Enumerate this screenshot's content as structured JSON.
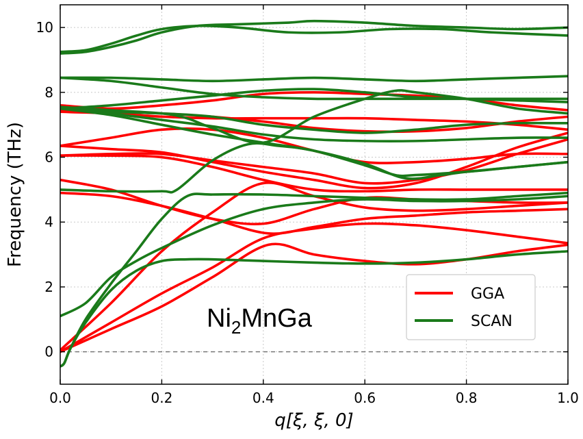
{
  "chart_data": {
    "type": "line",
    "title": "",
    "xlabel": "q[ξ, ξ, 0]",
    "ylabel": "Frequency (THz)",
    "xlim": [
      0.0,
      1.0
    ],
    "ylim": [
      -1.0,
      10.7
    ],
    "xticks": [
      0.0,
      0.2,
      0.4,
      0.6,
      0.8,
      1.0
    ],
    "xtick_labels": [
      "0.0",
      "0.2",
      "0.4",
      "0.6",
      "0.8",
      "1.0"
    ],
    "yticks": [
      0,
      2,
      4,
      6,
      8,
      10
    ],
    "ytick_labels": [
      "0",
      "2",
      "4",
      "6",
      "8",
      "10"
    ],
    "grid": true,
    "zero_line": 0,
    "annotation": {
      "base": "Ni",
      "sub": "2",
      "rest": "MnGa"
    },
    "legend": {
      "placement": "lower-right",
      "entries": [
        {
          "label": "GGA",
          "color": "#ff0000"
        },
        {
          "label": "SCAN",
          "color": "#1a7a1a"
        }
      ]
    },
    "series": [
      {
        "name": "GGA",
        "color": "#ff0000",
        "branches": [
          {
            "x": [
              0.0,
              0.1,
              0.2,
              0.3,
              0.41,
              0.5,
              0.6,
              0.7,
              0.8,
              0.9,
              1.0
            ],
            "y": [
              0.0,
              0.7,
              1.4,
              2.3,
              3.3,
              3.0,
              2.8,
              2.7,
              2.85,
              3.1,
              3.3
            ]
          },
          {
            "x": [
              0.0,
              0.1,
              0.2,
              0.3,
              0.4,
              0.5,
              0.6,
              0.7,
              0.8,
              0.9,
              1.0
            ],
            "y": [
              0.0,
              0.9,
              1.8,
              2.6,
              3.5,
              3.8,
              3.95,
              3.9,
              3.75,
              3.55,
              3.35
            ]
          },
          {
            "x": [
              0.0,
              0.1,
              0.2,
              0.3,
              0.4,
              0.5,
              0.6,
              0.7,
              0.8,
              0.9,
              1.0
            ],
            "y": [
              0.05,
              1.5,
              3.1,
              4.3,
              5.2,
              4.8,
              4.45,
              4.35,
              4.4,
              4.5,
              4.6
            ]
          },
          {
            "x": [
              0.0,
              0.1,
              0.2,
              0.3,
              0.41,
              0.5,
              0.6,
              0.7,
              0.8,
              0.9,
              1.0
            ],
            "y": [
              4.9,
              4.8,
              4.5,
              4.1,
              3.65,
              3.85,
              4.1,
              4.2,
              4.3,
              4.35,
              4.4
            ]
          },
          {
            "x": [
              0.0,
              0.1,
              0.2,
              0.3,
              0.4,
              0.5,
              0.6,
              0.7,
              0.8,
              0.9,
              1.0
            ],
            "y": [
              5.3,
              5.0,
              4.5,
              4.1,
              3.95,
              4.4,
              4.75,
              4.7,
              4.65,
              4.6,
              4.6
            ]
          },
          {
            "x": [
              0.0,
              0.1,
              0.2,
              0.3,
              0.4,
              0.5,
              0.6,
              0.7,
              0.8,
              0.9,
              1.0
            ],
            "y": [
              6.05,
              6.05,
              6.0,
              5.7,
              5.3,
              5.0,
              4.95,
              5.0,
              5.0,
              5.0,
              5.0
            ]
          },
          {
            "x": [
              0.0,
              0.1,
              0.2,
              0.3,
              0.4,
              0.5,
              0.6,
              0.7,
              0.8,
              0.9,
              1.0
            ],
            "y": [
              6.05,
              6.1,
              6.1,
              5.9,
              5.7,
              5.5,
              5.2,
              5.3,
              5.6,
              6.1,
              6.55
            ]
          },
          {
            "x": [
              0.0,
              0.1,
              0.2,
              0.3,
              0.4,
              0.5,
              0.6,
              0.7,
              0.8,
              0.9,
              1.0
            ],
            "y": [
              6.35,
              6.25,
              6.15,
              5.85,
              5.55,
              5.3,
              5.05,
              5.2,
              5.7,
              6.3,
              6.75
            ]
          },
          {
            "x": [
              0.0,
              0.1,
              0.2,
              0.3,
              0.4,
              0.5,
              0.6,
              0.7,
              0.8,
              0.9,
              1.0
            ],
            "y": [
              6.35,
              6.6,
              6.85,
              6.85,
              6.6,
              6.2,
              5.85,
              5.85,
              5.95,
              6.1,
              6.1
            ]
          },
          {
            "x": [
              0.0,
              0.1,
              0.2,
              0.3,
              0.4,
              0.5,
              0.6,
              0.7,
              0.8,
              0.9,
              1.0
            ],
            "y": [
              7.4,
              7.35,
              7.25,
              7.2,
              7.2,
              7.2,
              7.2,
              7.15,
              7.1,
              7.0,
              6.85
            ]
          },
          {
            "x": [
              0.0,
              0.1,
              0.2,
              0.3,
              0.4,
              0.5,
              0.6,
              0.7,
              0.8,
              0.9,
              1.0
            ],
            "y": [
              7.45,
              7.4,
              7.35,
              7.25,
              7.1,
              6.9,
              6.8,
              6.8,
              6.9,
              7.1,
              7.25
            ]
          },
          {
            "x": [
              0.0,
              0.1,
              0.2,
              0.3,
              0.4,
              0.5,
              0.6,
              0.7,
              0.8,
              0.9,
              1.0
            ],
            "y": [
              7.6,
              7.5,
              7.6,
              7.75,
              7.95,
              8.0,
              7.95,
              7.9,
              7.8,
              7.6,
              7.45
            ]
          }
        ]
      },
      {
        "name": "SCAN",
        "color": "#1a7a1a",
        "branches": [
          {
            "x": [
              0.0,
              0.008,
              0.02,
              0.05,
              0.1,
              0.15,
              0.2,
              0.25,
              0.3,
              0.4,
              0.5,
              0.6,
              0.7,
              0.8,
              0.9,
              1.0
            ],
            "y": [
              -0.45,
              -0.35,
              0.1,
              0.9,
              1.9,
              2.5,
              2.8,
              2.85,
              2.85,
              2.8,
              2.75,
              2.72,
              2.75,
              2.85,
              3.0,
              3.1
            ]
          },
          {
            "x": [
              0.0,
              0.008,
              0.02,
              0.05,
              0.1,
              0.15,
              0.2,
              0.25,
              0.3,
              0.4,
              0.5,
              0.6,
              0.7,
              0.8,
              0.9,
              1.0
            ],
            "y": [
              -0.45,
              -0.35,
              0.1,
              1.0,
              2.1,
              3.1,
              4.1,
              4.8,
              4.85,
              4.85,
              4.8,
              4.75,
              4.7,
              4.7,
              4.8,
              4.9
            ]
          },
          {
            "x": [
              0.0,
              0.05,
              0.1,
              0.15,
              0.2,
              0.3,
              0.4,
              0.5,
              0.6,
              0.7,
              0.8,
              0.9,
              1.0
            ],
            "y": [
              1.1,
              1.5,
              2.3,
              2.8,
              3.2,
              3.9,
              4.4,
              4.6,
              4.7,
              4.65,
              4.65,
              4.7,
              4.8
            ]
          },
          {
            "x": [
              0.0,
              0.1,
              0.2,
              0.23,
              0.3,
              0.37,
              0.43,
              0.5,
              0.6,
              0.66,
              0.7,
              0.8,
              0.9,
              1.0
            ],
            "y": [
              5.0,
              4.95,
              4.95,
              5.0,
              5.9,
              6.4,
              6.35,
              6.2,
              5.75,
              5.45,
              5.45,
              5.55,
              5.7,
              5.85
            ]
          },
          {
            "x": [
              0.0,
              0.1,
              0.2,
              0.3,
              0.4,
              0.5,
              0.6,
              0.68,
              0.75,
              0.8,
              0.9,
              1.0
            ],
            "y": [
              7.5,
              7.3,
              7.0,
              6.7,
              6.45,
              6.2,
              5.8,
              5.35,
              5.45,
              5.55,
              5.7,
              5.85
            ]
          },
          {
            "x": [
              0.0,
              0.1,
              0.2,
              0.3,
              0.4,
              0.5,
              0.6,
              0.7,
              0.8,
              0.9,
              1.0
            ],
            "y": [
              7.55,
              7.35,
              7.15,
              6.95,
              6.7,
              6.55,
              6.5,
              6.5,
              6.55,
              6.6,
              6.6
            ]
          },
          {
            "x": [
              0.0,
              0.1,
              0.2,
              0.3,
              0.4,
              0.5,
              0.6,
              0.7,
              0.8,
              0.9,
              1.0
            ],
            "y": [
              7.5,
              7.4,
              7.35,
              7.25,
              7.0,
              6.85,
              6.75,
              6.85,
              7.0,
              7.05,
              7.05
            ]
          },
          {
            "x": [
              0.0,
              0.1,
              0.2,
              0.25,
              0.3,
              0.4,
              0.5,
              0.6,
              0.66,
              0.7,
              0.8,
              0.9,
              1.0
            ],
            "y": [
              7.55,
              7.45,
              7.35,
              7.2,
              6.9,
              6.45,
              7.25,
              7.8,
              8.05,
              8.0,
              7.8,
              7.5,
              7.35
            ]
          },
          {
            "x": [
              0.0,
              0.1,
              0.2,
              0.3,
              0.4,
              0.5,
              0.6,
              0.7,
              0.8,
              0.9,
              1.0
            ],
            "y": [
              7.5,
              7.6,
              7.75,
              7.9,
              8.05,
              8.1,
              8.0,
              7.85,
              7.8,
              7.75,
              7.7
            ]
          },
          {
            "x": [
              0.0,
              0.1,
              0.2,
              0.3,
              0.4,
              0.5,
              0.6,
              0.7,
              0.8,
              0.9,
              1.0
            ],
            "y": [
              8.45,
              8.35,
              8.15,
              7.95,
              7.85,
              7.8,
              7.8,
              7.8,
              7.8,
              7.8,
              7.8
            ]
          },
          {
            "x": [
              0.0,
              0.1,
              0.2,
              0.3,
              0.4,
              0.5,
              0.6,
              0.7,
              0.8,
              0.9,
              1.0
            ],
            "y": [
              8.45,
              8.45,
              8.4,
              8.35,
              8.4,
              8.45,
              8.4,
              8.35,
              8.4,
              8.45,
              8.5
            ]
          },
          {
            "x": [
              0.0,
              0.05,
              0.1,
              0.15,
              0.2,
              0.27,
              0.35,
              0.45,
              0.5,
              0.6,
              0.7,
              0.8,
              0.9,
              1.0
            ],
            "y": [
              9.2,
              9.25,
              9.4,
              9.6,
              9.85,
              10.05,
              10.1,
              10.15,
              10.2,
              10.15,
              10.05,
              10.0,
              9.95,
              10.0
            ]
          },
          {
            "x": [
              0.0,
              0.05,
              0.1,
              0.15,
              0.2,
              0.27,
              0.35,
              0.45,
              0.55,
              0.65,
              0.75,
              0.85,
              1.0
            ],
            "y": [
              9.25,
              9.3,
              9.5,
              9.75,
              9.95,
              10.05,
              10.0,
              9.85,
              9.85,
              9.95,
              9.95,
              9.85,
              9.75
            ]
          }
        ]
      }
    ]
  }
}
